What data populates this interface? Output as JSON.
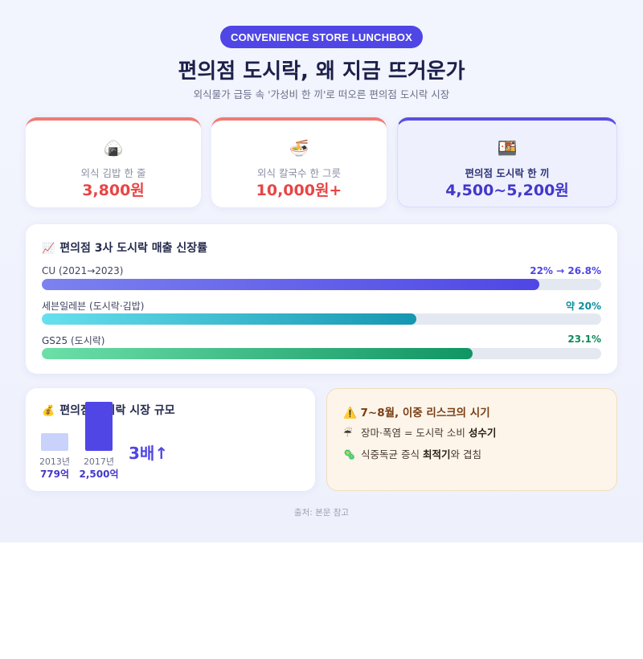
{
  "badge": "CONVENIENCE STORE LUNCHBOX",
  "title": "편의점 도시락, 왜 지금 뜨거운가",
  "subtitle": "외식물가 급등 속 '가성비 한 끼'로 떠오른 편의점 도시락 시장",
  "price_cards": [
    {
      "icon": "🍙",
      "icon_name": "rice-ball-icon",
      "label": "외식 김밥 한 줄",
      "value": "3,800원"
    },
    {
      "icon": "🍜",
      "icon_name": "noodle-bowl-icon",
      "label": "외식 칼국수 한 그릇",
      "value": "10,000원+"
    },
    {
      "icon": "🍱",
      "icon_name": "bento-box-icon",
      "label": "편의점 도시락 한 끼",
      "value": "4,500~5,200원"
    }
  ],
  "growth": {
    "icon": "📈",
    "title": "편의점 3사 도시락 매출 신장률",
    "rows": [
      {
        "label": "CU (2021→2023)",
        "value": "22% → 26.8%",
        "fill_fraction": 0.89,
        "color_from": "#7c82ef",
        "color_to": "#4f46e5",
        "value_color": "#4f46e5"
      },
      {
        "label": "세븐일레븐 (도시락·김밥)",
        "value": "약 20%",
        "fill_fraction": 0.67,
        "color_from": "#67e0ee",
        "color_to": "#1596b1",
        "value_color": "#0e8f9f"
      },
      {
        "label": "GS25 (도시락)",
        "value": "23.1%",
        "fill_fraction": 0.77,
        "color_from": "#6ddfa8",
        "color_to": "#109563",
        "value_color": "#0e8a5c"
      }
    ]
  },
  "market": {
    "icon": "💰",
    "title": "편의점 도시락 시장 규모",
    "columns": [
      {
        "year": "2013년",
        "value": "779억",
        "amount": 779,
        "color": "#c9d2fb"
      },
      {
        "year": "2017년",
        "value": "2,500억",
        "amount": 2500,
        "color": "#4f46e5"
      }
    ],
    "multiple": "3배↑"
  },
  "risk": {
    "icon": "⚠️",
    "title": "7~8월, 이중 리스크의 시기",
    "items": [
      {
        "icon": "☔",
        "icon_name": "umbrella-icon",
        "text_before": "장마·폭염 = 도시락 소비 ",
        "bold": "성수기",
        "text_after": ""
      },
      {
        "icon": "🦠",
        "icon_name": "microbe-icon",
        "text_before": "식중독균 증식 ",
        "bold": "최적기",
        "text_after": "와 겹침"
      }
    ]
  },
  "source": "출처: 본문 참고"
}
